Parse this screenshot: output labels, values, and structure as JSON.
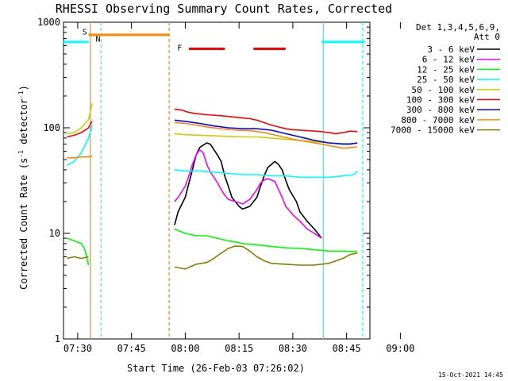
{
  "chart_data": {
    "type": "line",
    "title": "RHESSI Observing Summary Count Rates, Corrected",
    "xlabel": "Start Time (26-Feb-03 07:26:02)",
    "ylabel": "Corrected Count Rate (s",
    "ylabel_sup1": "-1",
    "ylabel_mid": " detector",
    "ylabel_sup2": "-1",
    "ylabel_end": ")",
    "footer_date": "15-Oct-2021 14:45",
    "y_scale": "log",
    "ylim": [
      1,
      1000
    ],
    "xlim_minutes": [
      26.03,
      100
    ],
    "x_ticks": [
      {
        "label": "07:30",
        "m": 30
      },
      {
        "label": "07:45",
        "m": 45
      },
      {
        "label": "08:00",
        "m": 60
      },
      {
        "label": "08:15",
        "m": 75
      },
      {
        "label": "08:30",
        "m": 90
      },
      {
        "label": "08:45",
        "m": 105
      },
      {
        "label": "09:00",
        "m": 120
      }
    ],
    "y_ticks": [
      {
        "label": "1000",
        "v": 1000
      },
      {
        "label": "100",
        "v": 100
      },
      {
        "label": "10",
        "v": 10
      },
      {
        "label": "1",
        "v": 1
      }
    ],
    "legend_header": [
      "Det 1,3,4,5,6,9,",
      "Att 0"
    ],
    "series": [
      {
        "name": "3 - 6 keV",
        "color": "#000000",
        "segments": [
          [
            [
              33,
              null
            ]
          ],
          [
            [
              57,
              12
            ],
            [
              58,
              16
            ],
            [
              60,
              22
            ],
            [
              62,
              40
            ],
            [
              63,
              55
            ],
            [
              64,
              65
            ],
            [
              66,
              72
            ],
            [
              67,
              70
            ],
            [
              68,
              62
            ],
            [
              69,
              55
            ],
            [
              70,
              48
            ],
            [
              71,
              35
            ],
            [
              72,
              28
            ],
            [
              73,
              22
            ],
            [
              75,
              18
            ],
            [
              76,
              17
            ],
            [
              78,
              18
            ],
            [
              80,
              22
            ],
            [
              81,
              28
            ],
            [
              82,
              35
            ],
            [
              83,
              42
            ],
            [
              85,
              48
            ],
            [
              86,
              45
            ],
            [
              87,
              40
            ],
            [
              88,
              32
            ],
            [
              89,
              26
            ],
            [
              91,
              20
            ],
            [
              92,
              16
            ],
            [
              94,
              13
            ],
            [
              96,
              11
            ],
            [
              97,
              10
            ],
            [
              98,
              9
            ]
          ]
        ]
      },
      {
        "name": "6 - 12 keV",
        "color": "#ff00ff",
        "segments": [
          [
            [
              57,
              20
            ],
            [
              58,
              22
            ],
            [
              60,
              28
            ],
            [
              61,
              35
            ],
            [
              62,
              45
            ],
            [
              63,
              55
            ],
            [
              64,
              62
            ],
            [
              65,
              58
            ],
            [
              66,
              45
            ],
            [
              67,
              38
            ],
            [
              68,
              34
            ],
            [
              69,
              30
            ],
            [
              70,
              26
            ],
            [
              71,
              23
            ],
            [
              72,
              21
            ],
            [
              74,
              20
            ],
            [
              76,
              19
            ],
            [
              78,
              21
            ],
            [
              80,
              26
            ],
            [
              81,
              30
            ],
            [
              82,
              32
            ],
            [
              83,
              33
            ],
            [
              85,
              31
            ],
            [
              86,
              26
            ],
            [
              87,
              22
            ],
            [
              88,
              18
            ],
            [
              90,
              15
            ],
            [
              92,
              13
            ],
            [
              94,
              11
            ],
            [
              96,
              10
            ],
            [
              98,
              9
            ]
          ]
        ]
      },
      {
        "name": "12 - 25 keV",
        "color": "#00ff00",
        "segments": [
          [
            [
              27,
              9
            ],
            [
              29,
              8.5
            ],
            [
              31,
              8
            ],
            [
              32,
              7
            ],
            [
              33,
              5
            ]
          ],
          [
            [
              57,
              11
            ],
            [
              60,
              10
            ],
            [
              63,
              9.5
            ],
            [
              66,
              9.5
            ],
            [
              70,
              8.8
            ],
            [
              72,
              8.5
            ],
            [
              74,
              8.3
            ],
            [
              76,
              8
            ],
            [
              80,
              7.8
            ],
            [
              84,
              7.5
            ],
            [
              88,
              7.3
            ],
            [
              92,
              7.2
            ],
            [
              96,
              7
            ],
            [
              100,
              6.8
            ],
            [
              104,
              6.8
            ],
            [
              108,
              6.7
            ]
          ]
        ]
      },
      {
        "name": "25 - 50 keV",
        "color": "#00ffff",
        "segments": [
          [
            [
              27,
              44
            ],
            [
              29,
              48
            ],
            [
              31,
              58
            ],
            [
              33,
              80
            ],
            [
              34,
              105
            ]
          ],
          [
            [
              57,
              40
            ],
            [
              60,
              39
            ],
            [
              64,
              39
            ],
            [
              68,
              38
            ],
            [
              72,
              37
            ],
            [
              76,
              36
            ],
            [
              80,
              36
            ],
            [
              84,
              35
            ],
            [
              88,
              35
            ],
            [
              92,
              34
            ],
            [
              96,
              34
            ],
            [
              100,
              34
            ],
            [
              104,
              35
            ],
            [
              107,
              36
            ],
            [
              108,
              39
            ]
          ]
        ]
      },
      {
        "name": "50 - 100 keV",
        "color": "#cccc00",
        "segments": [
          [
            [
              27,
              88
            ],
            [
              29,
              90
            ],
            [
              31,
              100
            ],
            [
              33,
              120
            ],
            [
              34,
              170
            ]
          ],
          [
            [
              57,
              88
            ],
            [
              60,
              86
            ],
            [
              64,
              85
            ],
            [
              68,
              84
            ],
            [
              72,
              83
            ],
            [
              76,
              82
            ],
            [
              80,
              82
            ],
            [
              84,
              80
            ],
            [
              88,
              78
            ],
            [
              92,
              76
            ],
            [
              96,
              74
            ],
            [
              100,
              72
            ],
            [
              104,
              71
            ],
            [
              108,
              71
            ]
          ]
        ]
      },
      {
        "name": "100 - 300 keV",
        "color": "#ff0000",
        "segments": [
          [
            [
              27,
              82
            ],
            [
              29,
              85
            ],
            [
              31,
              90
            ],
            [
              33,
              100
            ],
            [
              34,
              115
            ]
          ],
          [
            [
              57,
              150
            ],
            [
              59,
              147
            ],
            [
              61,
              140
            ],
            [
              63,
              136
            ],
            [
              66,
              133
            ],
            [
              70,
              130
            ],
            [
              72,
              128
            ],
            [
              74,
              126
            ],
            [
              76,
              124
            ],
            [
              78,
              122
            ],
            [
              80,
              118
            ],
            [
              82,
              112
            ],
            [
              84,
              106
            ],
            [
              86,
              102
            ],
            [
              88,
              98
            ],
            [
              90,
              96
            ],
            [
              92,
              95
            ],
            [
              94,
              94
            ],
            [
              96,
              93
            ],
            [
              98,
              92
            ],
            [
              100,
              90
            ],
            [
              102,
              88
            ],
            [
              104,
              90
            ],
            [
              106,
              93
            ],
            [
              108,
              92
            ]
          ]
        ]
      },
      {
        "name": "300 - 800 keV",
        "color": "#0000ff",
        "segments": [
          [
            [
              57,
              118
            ],
            [
              60,
              115
            ],
            [
              64,
              110
            ],
            [
              68,
              104
            ],
            [
              72,
              100
            ],
            [
              76,
              98
            ],
            [
              80,
              98
            ],
            [
              84,
              95
            ],
            [
              88,
              88
            ],
            [
              92,
              82
            ],
            [
              96,
              76
            ],
            [
              100,
              72
            ],
            [
              104,
              70
            ],
            [
              106,
              70
            ],
            [
              108,
              72
            ]
          ]
        ]
      },
      {
        "name": "800 - 7000 keV",
        "color": "#ff8800",
        "segments": [
          [
            [
              27,
              52
            ],
            [
              29,
              52
            ],
            [
              31,
              53
            ],
            [
              33,
              53
            ],
            [
              34,
              54
            ]
          ],
          [
            [
              57,
              112
            ],
            [
              60,
              110
            ],
            [
              63,
              106
            ],
            [
              66,
              102
            ],
            [
              70,
              98
            ],
            [
              74,
              95
            ],
            [
              78,
              94
            ],
            [
              82,
              90
            ],
            [
              86,
              84
            ],
            [
              90,
              78
            ],
            [
              94,
              74
            ],
            [
              98,
              70
            ],
            [
              102,
              66
            ],
            [
              104,
              64
            ],
            [
              106,
              65
            ],
            [
              108,
              66
            ]
          ]
        ]
      },
      {
        "name": "7000 - 15000 keV",
        "color": "#808000",
        "segments": [
          [
            [
              27,
              5.8
            ],
            [
              29,
              6
            ],
            [
              31,
              5.8
            ],
            [
              33,
              6
            ]
          ],
          [
            [
              57,
              4.8
            ],
            [
              60,
              4.6
            ],
            [
              63,
              5.1
            ],
            [
              66,
              5.3
            ],
            [
              68,
              5.8
            ],
            [
              70,
              6.5
            ],
            [
              72,
              7.2
            ],
            [
              74,
              7.6
            ],
            [
              76,
              7.5
            ],
            [
              78,
              6.8
            ],
            [
              80,
              6
            ],
            [
              82,
              5.5
            ],
            [
              84,
              5.2
            ],
            [
              88,
              5.1
            ],
            [
              92,
              5
            ],
            [
              96,
              5
            ],
            [
              100,
              5.2
            ],
            [
              104,
              5.8
            ],
            [
              106,
              6.3
            ],
            [
              108,
              6.5
            ]
          ]
        ]
      }
    ],
    "attenuator_bars": [
      {
        "start": 26.03,
        "end": 33,
        "v": 650,
        "color": "#00ffff"
      },
      {
        "start": 33,
        "end": 55.5,
        "v": 760,
        "color": "#ff8800"
      },
      {
        "start": 61,
        "end": 71,
        "v": 560,
        "color": "#ff0000"
      },
      {
        "start": 79,
        "end": 88,
        "v": 560,
        "color": "#ff0000"
      },
      {
        "start": 98,
        "end": 110,
        "v": 650,
        "color": "#00ffff"
      }
    ],
    "v_lines": [
      {
        "m": 33.5,
        "color": "#ff8800",
        "dashed": false
      },
      {
        "m": 36.5,
        "color": "#00ffff",
        "dashed": true
      },
      {
        "m": 55.5,
        "color": "#ff8800",
        "dashed": true
      },
      {
        "m": 98.5,
        "color": "#00ffff",
        "dashed": false
      },
      {
        "m": 109.5,
        "color": "#00ffff",
        "dashed": true
      }
    ],
    "flags": [
      {
        "label": "S",
        "m": 33.5,
        "v": 820,
        "color": "#ff8800"
      },
      {
        "label": "N",
        "m": 37.2,
        "v": 700,
        "color": "#00ffff"
      },
      {
        "label": "F",
        "m": 60,
        "v": 580,
        "color": "#ff0000"
      }
    ]
  }
}
